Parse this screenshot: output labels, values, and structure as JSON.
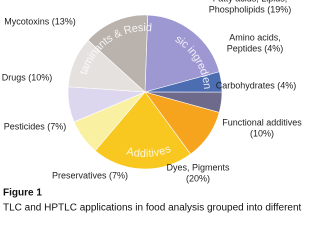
{
  "chart_data": {
    "type": "pie",
    "labels": [
      [
        "Fatty acids, Lipids,",
        "Phospholipids (19%)"
      ],
      [
        "Amino acids,",
        "Peptides (4%)"
      ],
      [
        "Carbohydrates (4%)"
      ],
      [
        "Functional additives",
        "(10%)"
      ],
      [
        "Dyes, Pigments",
        "(20%)"
      ],
      [
        "Preservatives (7%)"
      ],
      [
        "Pesticides (7%)"
      ],
      [
        "Drugs (10%)"
      ],
      [
        "Mycotoxins (13%)"
      ]
    ],
    "values": [
      19,
      4,
      4,
      10,
      20,
      7,
      7,
      10,
      13
    ],
    "colors": [
      "#9d98d2",
      "#4d6db3",
      "#6e6a8c",
      "#f6a31e",
      "#f8c820",
      "#faf0a2",
      "#dcd7ef",
      "#e5e1de",
      "#b9b2ad"
    ],
    "groups": [
      "Basic ingredients",
      "Additives",
      "Contaminants & Residues"
    ]
  },
  "figure_label": "Figure 1",
  "caption": "TLC and HPTLC applications in food analysis grouped into different"
}
